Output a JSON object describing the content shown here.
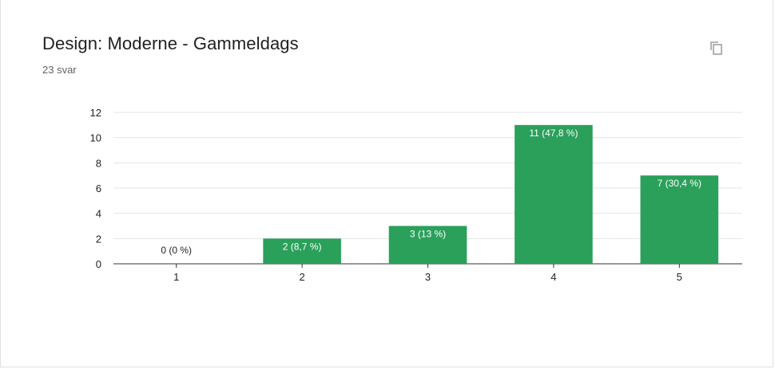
{
  "header": {
    "title": "Design: Moderne - Gammeldags",
    "response_count": "23 svar",
    "copy_icon": "copy-icon"
  },
  "colors": {
    "bar": "#2aa05a",
    "grid": "#e5e5e5",
    "axis": "#333333"
  },
  "chart_data": {
    "type": "bar",
    "title": "Design: Moderne - Gammeldags",
    "xlabel": "",
    "ylabel": "",
    "categories": [
      "1",
      "2",
      "3",
      "4",
      "5"
    ],
    "values": [
      0,
      2,
      3,
      11,
      7
    ],
    "data_labels": [
      "0 (0 %)",
      "2 (8,7 %)",
      "3 (13 %)",
      "11 (47,8 %)",
      "7 (30,4 %)"
    ],
    "ylim": [
      0,
      12
    ],
    "yticks": [
      0,
      2,
      4,
      6,
      8,
      10,
      12
    ],
    "grid": true,
    "legend": "none"
  }
}
